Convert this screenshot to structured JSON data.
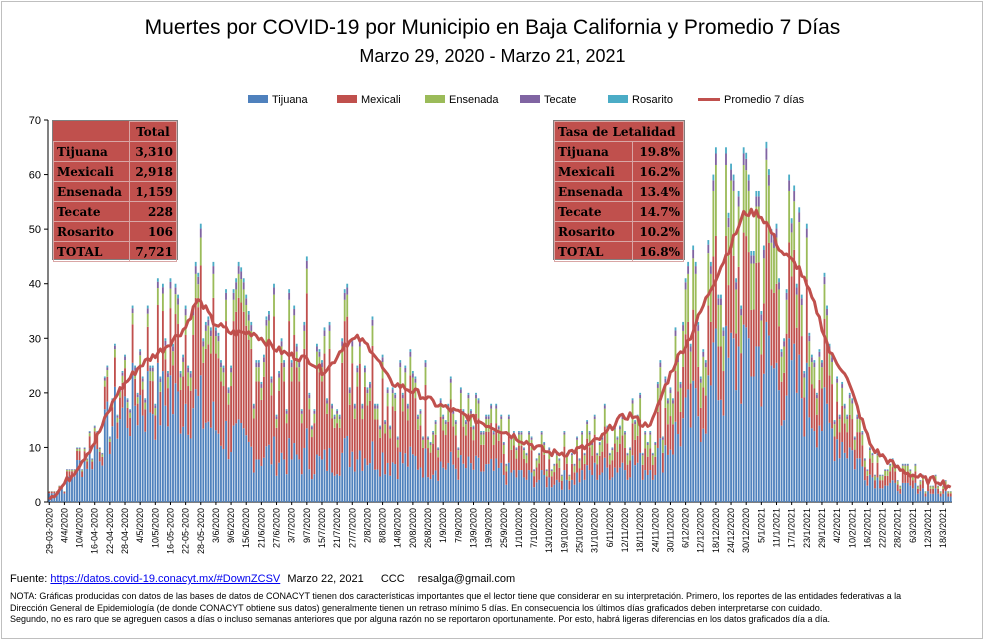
{
  "title": "Muertes por COVID-19 por Municipio en Baja California y Promedio 7 Días",
  "subtitle": "Marzo 29, 2020 - Marzo 21, 2021",
  "colors": {
    "Tijuana": "#4f81bd",
    "Mexicali": "#c0504d",
    "Ensenada": "#9bbb59",
    "Tecate": "#8064a2",
    "Rosarito": "#4bacc6",
    "Promedio": "#c0504d",
    "table_bg": "#c0504d"
  },
  "legend": [
    "Tijuana",
    "Mexicali",
    "Ensenada",
    "Tecate",
    "Rosarito",
    "Promedio 7 días"
  ],
  "totals_table": {
    "header": "Total",
    "rows": [
      {
        "label": "Tijuana",
        "value": "3,310"
      },
      {
        "label": "Mexicali",
        "value": "2,918"
      },
      {
        "label": "Ensenada",
        "value": "1,159"
      },
      {
        "label": "Tecate",
        "value": "228"
      },
      {
        "label": "Rosarito",
        "value": "106"
      },
      {
        "label": "TOTAL",
        "value": "7,721"
      }
    ]
  },
  "lethality_table": {
    "header": "Tasa de Letalidad",
    "rows": [
      {
        "label": "Tijuana",
        "value": "19.8%"
      },
      {
        "label": "Mexicali",
        "value": "16.2%"
      },
      {
        "label": "Ensenada",
        "value": "13.4%"
      },
      {
        "label": "Tecate",
        "value": "14.7%"
      },
      {
        "label": "Rosarito",
        "value": "10.2%"
      },
      {
        "label": "TOTAL",
        "value": "16.8%"
      }
    ]
  },
  "footer": {
    "source_label": "Fuente:",
    "source_link": "https://datos.covid-19.conacyt.mx/#DownZCSV",
    "date": "Marzo 22, 2021",
    "author": "CCC",
    "email": "resalga@gmail.com"
  },
  "note_lines": [
    "NOTA: Gráficas producidas con datos de las bases de datos de CONACYT tienen dos características importantes que el lector tiene que considerar en su interpretación. Primero, los reportes de las entidades federativas a la",
    "Dirección General de Epidemiología (de donde CONACYT obtiene sus datos) generalmente tienen un retraso mínimo 5 días. En consecuencia los últimos días graficados deben interpretarse con cuidado.",
    "Segundo, no es raro que se agreguen casos a días o incluso semanas anteriores que por alguna razón no se reportaron oportunamente. Por esto, habrá ligeras diferencias en los datos graficados día a día."
  ],
  "chart_data": {
    "type": "bar",
    "stacked": true,
    "title": "Muertes por COVID-19 por Municipio en Baja California y Promedio 7 Días",
    "subtitle": "Marzo 29, 2020 - Marzo 21, 2021",
    "start_date": "2020-03-29",
    "end_date": "2021-03-21",
    "days": 358,
    "ylim": [
      0,
      70
    ],
    "yticks": [
      0,
      10,
      20,
      30,
      40,
      50,
      60,
      70
    ],
    "x_tick_labels": [
      "29-03-2020",
      "4/4/2020",
      "10/4/2020",
      "16-04-2020",
      "22-04-2020",
      "28-04-2020",
      "4/5/2020",
      "10/5/2020",
      "16-05-2020",
      "22-05-2020",
      "28-05-2020",
      "3/6/2020",
      "9/6/2020",
      "15/6/2020",
      "21/6/2020",
      "27/6/2020",
      "3/7/2020",
      "9/7/2020",
      "15/7/2020",
      "21/7/2020",
      "27/7/2020",
      "2/8/2020",
      "8/8/2020",
      "14/8/2020",
      "20/8/2020",
      "26/8/2020",
      "1/9/2020",
      "7/9/2020",
      "13/9/2020",
      "19/9/2020",
      "25/9/2020",
      "1/10/2020",
      "7/10/2020",
      "13/10/2020",
      "19/10/2020",
      "25/10/2020",
      "31/10/2020",
      "6/11/2020",
      "12/11/2020",
      "18/11/2020",
      "24/11/2020",
      "30/11/2020",
      "6/12/2020",
      "12/12/2020",
      "18/12/2020",
      "24/12/2020",
      "30/12/2020",
      "5/1/2021",
      "11/1/2021",
      "17/1/2021",
      "23/1/2021",
      "29/1/2021",
      "4/2/2021",
      "10/2/2021",
      "16/2/2021",
      "22/2/2021",
      "28/2/2021",
      "6/3/2021",
      "12/3/2021",
      "18/3/2021"
    ],
    "avg_knots": [
      [
        0,
        1
      ],
      [
        4,
        2
      ],
      [
        10,
        5
      ],
      [
        20,
        11
      ],
      [
        30,
        20
      ],
      [
        40,
        25
      ],
      [
        50,
        28
      ],
      [
        60,
        32
      ],
      [
        65,
        37
      ],
      [
        68,
        36
      ],
      [
        72,
        33
      ],
      [
        80,
        31
      ],
      [
        90,
        31
      ],
      [
        100,
        28
      ],
      [
        105,
        27
      ],
      [
        115,
        26
      ],
      [
        120,
        24
      ],
      [
        124,
        25
      ],
      [
        130,
        29
      ],
      [
        136,
        30
      ],
      [
        142,
        28
      ],
      [
        150,
        22
      ],
      [
        156,
        21
      ],
      [
        162,
        20
      ],
      [
        170,
        18
      ],
      [
        176,
        17
      ],
      [
        182,
        16
      ],
      [
        188,
        15
      ],
      [
        194,
        14
      ],
      [
        200,
        13
      ],
      [
        210,
        11
      ],
      [
        220,
        9
      ],
      [
        228,
        9
      ],
      [
        236,
        10
      ],
      [
        244,
        12
      ],
      [
        250,
        15
      ],
      [
        256,
        16
      ],
      [
        262,
        14
      ],
      [
        266,
        15
      ],
      [
        270,
        20
      ],
      [
        276,
        26
      ],
      [
        282,
        30
      ],
      [
        290,
        38
      ],
      [
        300,
        47
      ],
      [
        306,
        53
      ],
      [
        312,
        53
      ],
      [
        316,
        51
      ],
      [
        322,
        46
      ],
      [
        330,
        43
      ],
      [
        338,
        35
      ],
      [
        344,
        27
      ],
      [
        350,
        24
      ],
      [
        356,
        17
      ],
      [
        362,
        10
      ],
      [
        368,
        8
      ],
      [
        374,
        6
      ],
      [
        380,
        5
      ],
      [
        386,
        4
      ],
      [
        392,
        4
      ],
      [
        395,
        3
      ],
      [
        398,
        3
      ]
    ],
    "total_knots": [
      [
        0,
        2
      ],
      [
        6,
        3
      ],
      [
        12,
        8
      ],
      [
        22,
        14
      ],
      [
        30,
        22
      ],
      [
        38,
        26
      ],
      [
        44,
        29
      ],
      [
        50,
        30
      ],
      [
        56,
        33
      ],
      [
        62,
        40
      ],
      [
        68,
        35
      ],
      [
        74,
        33
      ],
      [
        82,
        31
      ],
      [
        90,
        31
      ],
      [
        100,
        28
      ],
      [
        106,
        27
      ],
      [
        114,
        26
      ],
      [
        120,
        23
      ],
      [
        124,
        26
      ],
      [
        130,
        30
      ],
      [
        136,
        31
      ],
      [
        142,
        27
      ],
      [
        150,
        22
      ],
      [
        156,
        21
      ],
      [
        162,
        20
      ],
      [
        170,
        18
      ],
      [
        176,
        17
      ],
      [
        182,
        15
      ],
      [
        188,
        14
      ],
      [
        194,
        13
      ],
      [
        200,
        12
      ],
      [
        210,
        10
      ],
      [
        220,
        9
      ],
      [
        228,
        9
      ],
      [
        236,
        11
      ],
      [
        244,
        13
      ],
      [
        250,
        15
      ],
      [
        256,
        16
      ],
      [
        262,
        14
      ],
      [
        266,
        15
      ],
      [
        270,
        21
      ],
      [
        276,
        27
      ],
      [
        282,
        32
      ],
      [
        290,
        40
      ],
      [
        300,
        49
      ],
      [
        306,
        55
      ],
      [
        312,
        54
      ],
      [
        316,
        51
      ],
      [
        322,
        45
      ],
      [
        330,
        41
      ],
      [
        338,
        33
      ],
      [
        344,
        26
      ],
      [
        350,
        22
      ],
      [
        356,
        15
      ],
      [
        362,
        9
      ],
      [
        368,
        7
      ],
      [
        374,
        5
      ],
      [
        380,
        5
      ],
      [
        386,
        4
      ],
      [
        392,
        3
      ],
      [
        398,
        3
      ]
    ],
    "share_knots": {
      "Tijuana": [
        [
          0,
          0.8
        ],
        [
          40,
          0.7
        ],
        [
          60,
          0.5
        ],
        [
          90,
          0.3
        ],
        [
          130,
          0.3
        ],
        [
          200,
          0.45
        ],
        [
          270,
          0.45
        ],
        [
          300,
          0.5
        ],
        [
          330,
          0.5
        ],
        [
          360,
          0.5
        ],
        [
          398,
          0.5
        ]
      ],
      "Mexicali": [
        [
          0,
          0.15
        ],
        [
          40,
          0.2
        ],
        [
          60,
          0.35
        ],
        [
          90,
          0.55
        ],
        [
          130,
          0.55
        ],
        [
          200,
          0.35
        ],
        [
          270,
          0.3
        ],
        [
          300,
          0.25
        ],
        [
          330,
          0.3
        ],
        [
          360,
          0.3
        ],
        [
          398,
          0.3
        ]
      ],
      "Ensenada": [
        [
          0,
          0.03
        ],
        [
          40,
          0.06
        ],
        [
          60,
          0.1
        ],
        [
          90,
          0.1
        ],
        [
          130,
          0.1
        ],
        [
          200,
          0.15
        ],
        [
          270,
          0.2
        ],
        [
          300,
          0.2
        ],
        [
          330,
          0.15
        ],
        [
          360,
          0.15
        ],
        [
          398,
          0.15
        ]
      ]
    },
    "series": [
      {
        "name": "Tijuana",
        "total": 3310,
        "lethality": "19.8%"
      },
      {
        "name": "Mexicali",
        "total": 2918,
        "lethality": "16.2%"
      },
      {
        "name": "Ensenada",
        "total": 1159,
        "lethality": "13.4%"
      },
      {
        "name": "Tecate",
        "total": 228,
        "lethality": "14.7%"
      },
      {
        "name": "Rosarito",
        "total": 106,
        "lethality": "10.2%"
      },
      {
        "name": "Promedio 7 días",
        "type": "line"
      }
    ],
    "notable_peaks": [
      {
        "x": "9/7/2020",
        "value": 45
      },
      {
        "x": "16-05-2020",
        "value": 41
      },
      {
        "x": "18/12/2020",
        "value": 65
      },
      {
        "x": "30/12/2020",
        "value": 64
      }
    ],
    "grid": false,
    "legend_position": "top"
  }
}
